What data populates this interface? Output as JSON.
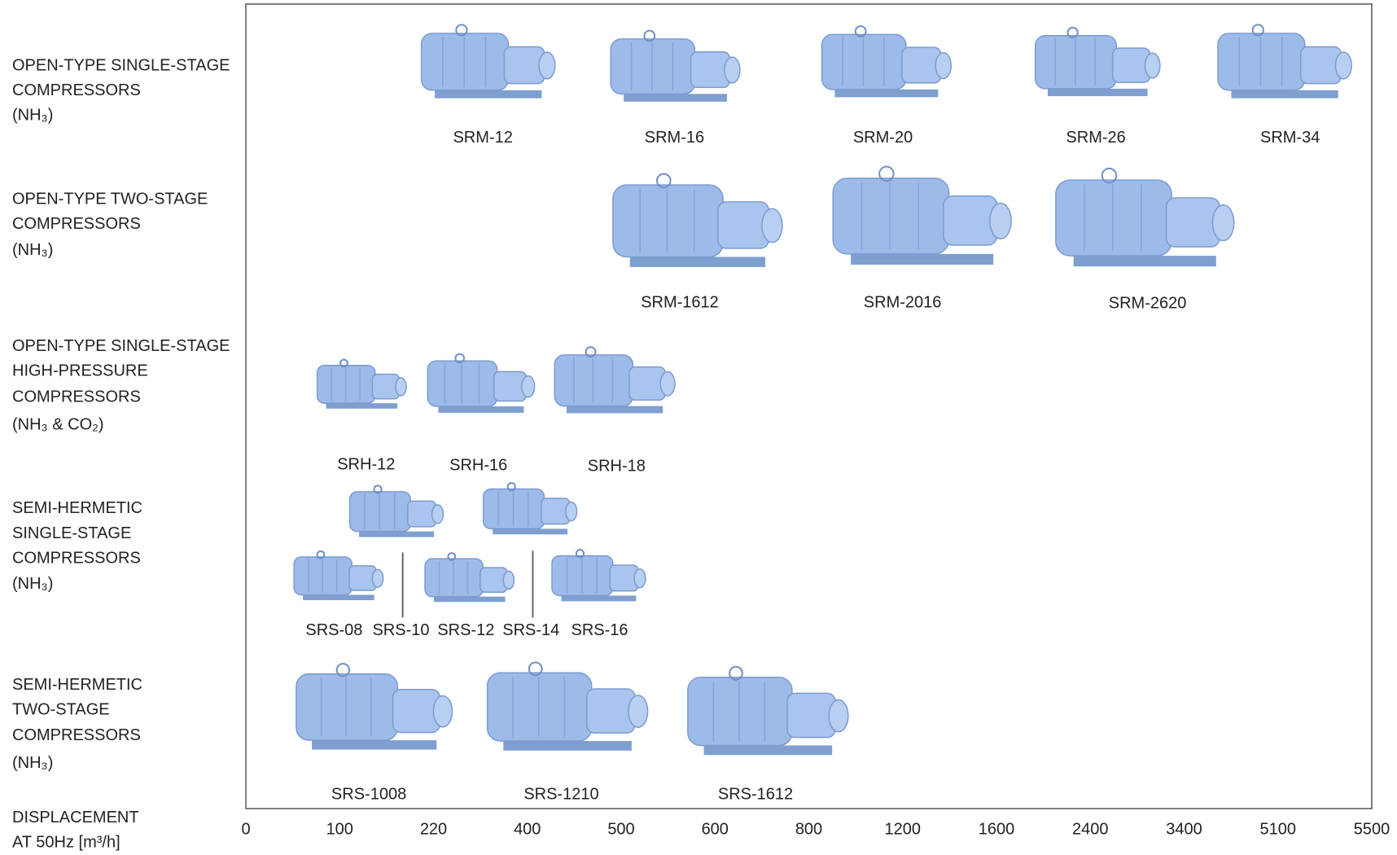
{
  "rows": [
    {
      "label": [
        "OPEN-TYPE SINGLE-STAGE",
        "COMPRESSORS",
        "(NH₃)"
      ],
      "models": [
        "SRM-12",
        "SRM-16",
        "SRM-20",
        "SRM-26",
        "SRM-34"
      ]
    },
    {
      "label": [
        "OPEN-TYPE TWO-STAGE",
        "COMPRESSORS",
        "(NH₃)"
      ],
      "models": [
        "SRM-1612",
        "SRM-2016",
        "SRM-2620"
      ]
    },
    {
      "label": [
        "OPEN-TYPE SINGLE-STAGE",
        "HIGH-PRESSURE",
        "COMPRESSORS",
        "(NH₃ & CO₂)"
      ],
      "models": [
        "SRH-12",
        "SRH-16",
        "SRH-18"
      ]
    },
    {
      "label": [
        "SEMI-HERMETIC",
        "SINGLE-STAGE",
        "COMPRESSORS",
        "(NH₃)"
      ],
      "models": [
        "SRS-08",
        "SRS-10",
        "SRS-12",
        "SRS-14",
        "SRS-16"
      ]
    },
    {
      "label": [
        "SEMI-HERMETIC",
        "TWO-STAGE",
        "COMPRESSORS",
        "(NH₃)"
      ],
      "models": [
        "SRS-1008",
        "SRS-1210",
        "SRS-1612"
      ]
    }
  ],
  "axis": {
    "label": [
      "DISPLACEMENT",
      "AT 50Hz [m³/h]"
    ],
    "ticks": [
      0,
      100,
      220,
      400,
      500,
      600,
      800,
      1200,
      1600,
      2400,
      3400,
      5100,
      5500
    ]
  }
}
